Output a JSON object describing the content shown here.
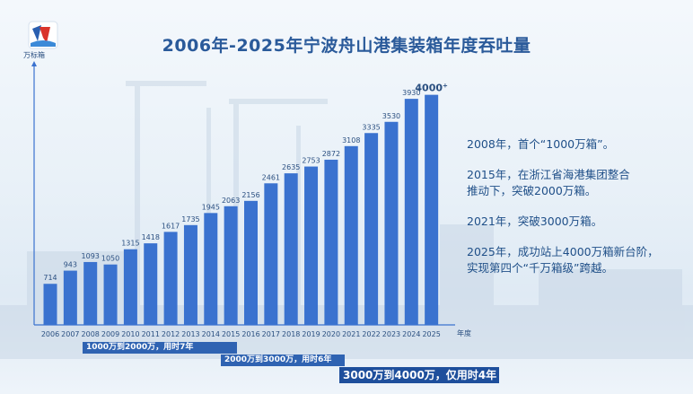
{
  "title": "2006年-2025年宁波舟山港集装箱年度吞吐量",
  "logo_icon": "port-logo-icon",
  "colors": {
    "bar": "#3a72cf",
    "title": "#2a5a9a",
    "label": "#2a4f80",
    "band": "#2f63b2"
  },
  "chart_data": {
    "type": "bar",
    "title": "2006年-2025年宁波舟山港集装箱年度吞吐量",
    "ylabel": "万标箱",
    "xlabel": "年度",
    "categories": [
      "2006",
      "2007",
      "2008",
      "2009",
      "2010",
      "2011",
      "2012",
      "2013",
      "2014",
      "2015",
      "2016",
      "2017",
      "2018",
      "2019",
      "2020",
      "2021",
      "2022",
      "2023",
      "2024",
      "2025"
    ],
    "values": [
      714,
      943,
      1093,
      1050,
      1315,
      1418,
      1617,
      1735,
      1945,
      2063,
      2156,
      2461,
      2635,
      2753,
      2872,
      3108,
      3335,
      3530,
      3930,
      4000
    ],
    "value_labels": [
      "714",
      "943",
      "1093",
      "1050",
      "1315",
      "1418",
      "1617",
      "1735",
      "1945",
      "2063",
      "2156",
      "2461",
      "2635",
      "2753",
      "2872",
      "3108",
      "3335",
      "3530",
      "3930",
      "4000"
    ],
    "last_label_suffix": "+",
    "ylim": [
      0,
      4400
    ],
    "grid": false
  },
  "notes": [
    "2008年，首个“1000万箱”。",
    "2015年，在浙江省海港集团整合\n推动下，突破2000万箱。",
    "2021年，突破3000万箱。",
    "2025年，成功站上4000万箱新台阶，\n实现第四个“千万箱级”跨越。"
  ],
  "bands": [
    {
      "label": "1000万到2000万，用时7年"
    },
    {
      "label": "2000万到3000万，用时6年"
    },
    {
      "label": "3000万到4000万，仅用时4年"
    }
  ]
}
